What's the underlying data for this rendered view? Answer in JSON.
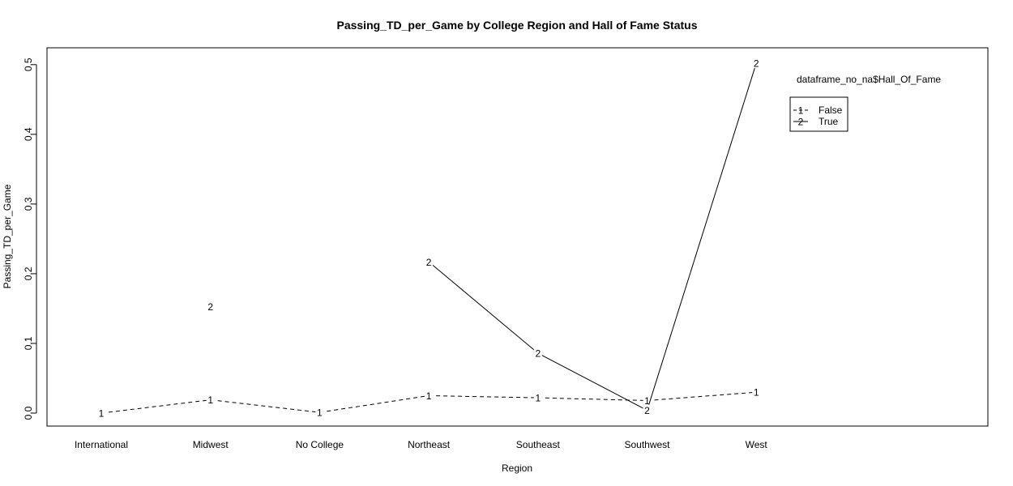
{
  "chart_data": {
    "type": "line",
    "title": "Passing_TD_per_Game by College Region and Hall of Fame Status",
    "xlabel": "Region",
    "ylabel": "Passing_TD_per_Game",
    "categories": [
      "International",
      "Midwest",
      "No College",
      "Northeast",
      "Southeast",
      "Southwest",
      "West"
    ],
    "yticks": [
      0.0,
      0.1,
      0.2,
      0.3,
      0.4,
      0.5
    ],
    "ytick_labels": [
      "0.0",
      "0.1",
      "0.2",
      "0.3",
      "0.4",
      "0.5"
    ],
    "ylim": [
      -0.018,
      0.525
    ],
    "grid": false,
    "legend": {
      "title": "dataframe_no_na$Hall_Of_Fame",
      "placement": "top-right",
      "entries": [
        {
          "symbol": "1",
          "label": "False",
          "linestyle": "dashed"
        },
        {
          "symbol": "2",
          "label": "True",
          "linestyle": "solid"
        }
      ]
    },
    "series": [
      {
        "name": "False",
        "symbol": "1",
        "linestyle": "dashed",
        "values": [
          0.0,
          0.019,
          0.001,
          0.025,
          0.022,
          0.018,
          0.03
        ]
      },
      {
        "name": "True",
        "symbol": "2",
        "linestyle": "solid",
        "values": [
          null,
          0.153,
          null,
          0.217,
          0.086,
          0.004,
          0.502
        ]
      }
    ]
  }
}
